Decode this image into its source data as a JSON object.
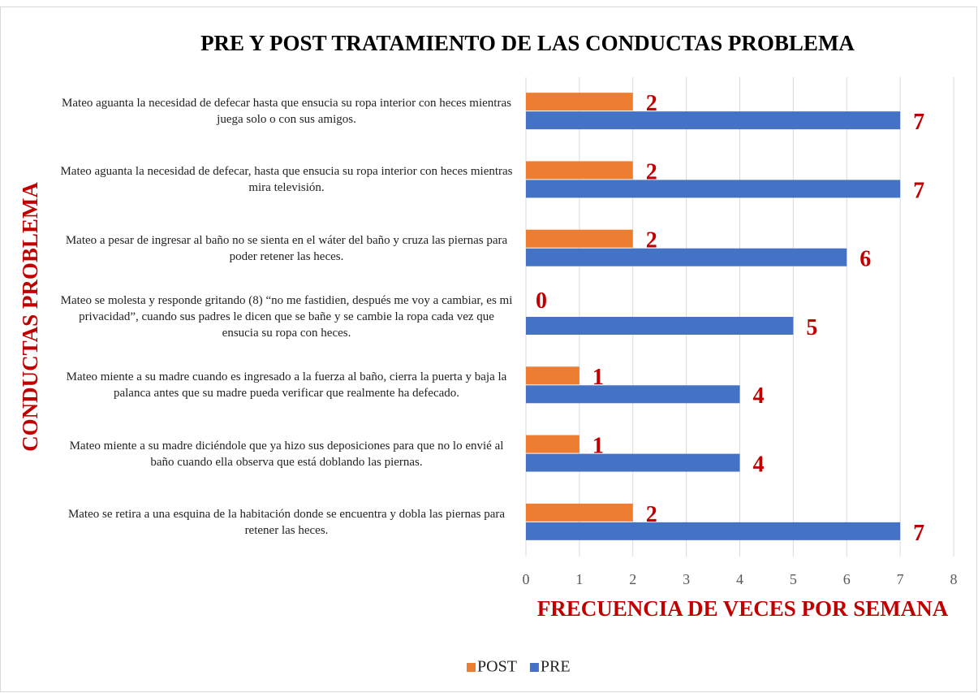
{
  "chart_data": {
    "type": "bar",
    "orientation": "horizontal",
    "title": "PRE Y POST TRATAMIENTO DE LAS CONDUCTAS PROBLEMA",
    "x_label": "FRECUENCIA DE VECES POR SEMANA",
    "y_label": "CONDUCTAS PROBLEMA",
    "categories": [
      "Mateo aguanta la necesidad de defecar hasta que ensucia su ropa interior con heces mientras juega solo o con sus amigos.",
      "Mateo aguanta la necesidad de defecar, hasta que ensucia su ropa interior con heces mientras mira televisión.",
      "Mateo a pesar de ingresar al baño no se sienta en el wáter del baño y cruza las piernas para poder retener las heces.",
      "Mateo se molesta y responde gritando (8) “no me fastidien, después me voy a cambiar, es mi privacidad”, cuando sus padres le dicen que se bañe y se cambie la ropa cada vez que ensucia su ropa con heces.",
      "Mateo miente a su madre cuando es ingresado a la fuerza al baño, cierra la puerta y baja la palanca antes que su madre pueda verificar que realmente ha defecado.",
      "Mateo miente a su madre diciéndole que ya hizo sus deposiciones para que no lo envié al baño cuando ella observa que está doblando las piernas.",
      "Mateo se retira a una esquina de la habitación donde se encuentra y dobla las piernas para retener las heces."
    ],
    "series": [
      {
        "name": "POST",
        "color": "#ed7d31",
        "values": [
          2,
          2,
          2,
          0,
          1,
          1,
          2
        ]
      },
      {
        "name": "PRE",
        "color": "#4472c4",
        "values": [
          7,
          7,
          6,
          5,
          4,
          4,
          7
        ]
      }
    ],
    "xlim": [
      0,
      8
    ],
    "xticks": [
      0,
      1,
      2,
      3,
      4,
      5,
      6,
      7,
      8
    ],
    "grid": true,
    "legend": "bottom"
  }
}
